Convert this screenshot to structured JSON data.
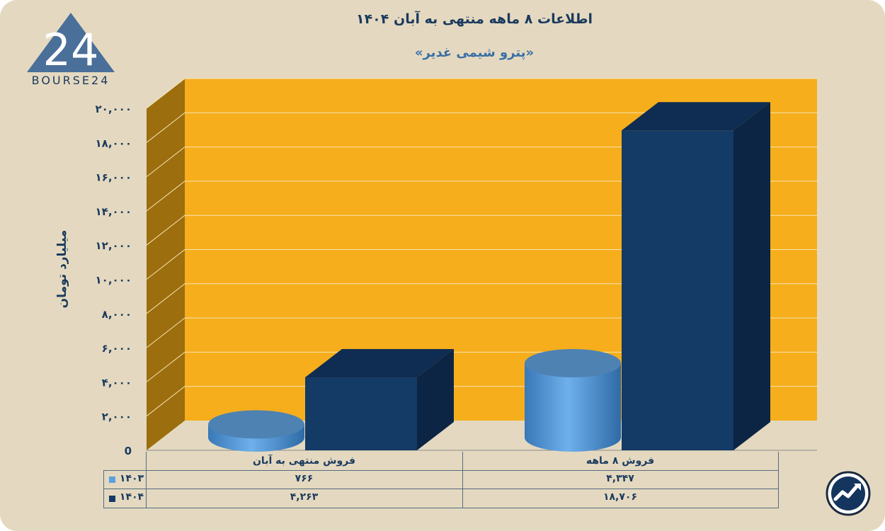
{
  "header": {
    "title": "اطلاعات ۸ ماهه منتهی به آبان ۱۴۰۴",
    "subtitle": "«پترو شیمی غدیر»"
  },
  "logo": {
    "text": "BOURSE24",
    "mark_text": "24"
  },
  "chart_data": {
    "type": "bar",
    "ylabel": "میلیارد تومان",
    "ylim": [
      0,
      20000
    ],
    "yticks": [
      "0",
      "۲,۰۰۰",
      "۴,۰۰۰",
      "۶,۰۰۰",
      "۸,۰۰۰",
      "۱۰,۰۰۰",
      "۱۲,۰۰۰",
      "۱۴,۰۰۰",
      "۱۶,۰۰۰",
      "۱۸,۰۰۰",
      "۲۰,۰۰۰"
    ],
    "ytick_values": [
      0,
      2000,
      4000,
      6000,
      8000,
      10000,
      12000,
      14000,
      16000,
      18000,
      20000
    ],
    "categories": [
      "فروش منتهی به  آبان",
      "فروش ۸  ماهه"
    ],
    "series": [
      {
        "name": "۱۴۰۳",
        "values": [
          766,
          4347
        ],
        "value_labels": [
          "۷۶۶",
          "۴,۳۴۷"
        ],
        "color": "#5aa0e0",
        "shape": "cylinder"
      },
      {
        "name": "۱۴۰۴",
        "values": [
          4263,
          18706
        ],
        "value_labels": [
          "۴,۲۶۳",
          "۱۸,۷۰۶"
        ],
        "color": "#143a66",
        "shape": "box"
      }
    ],
    "background_color": "#f6ae1c",
    "side_wall_color": "#9c6e0e",
    "grid": true,
    "legend": "data-table-bottom"
  },
  "corner_icon": "trend-arrow-icon"
}
